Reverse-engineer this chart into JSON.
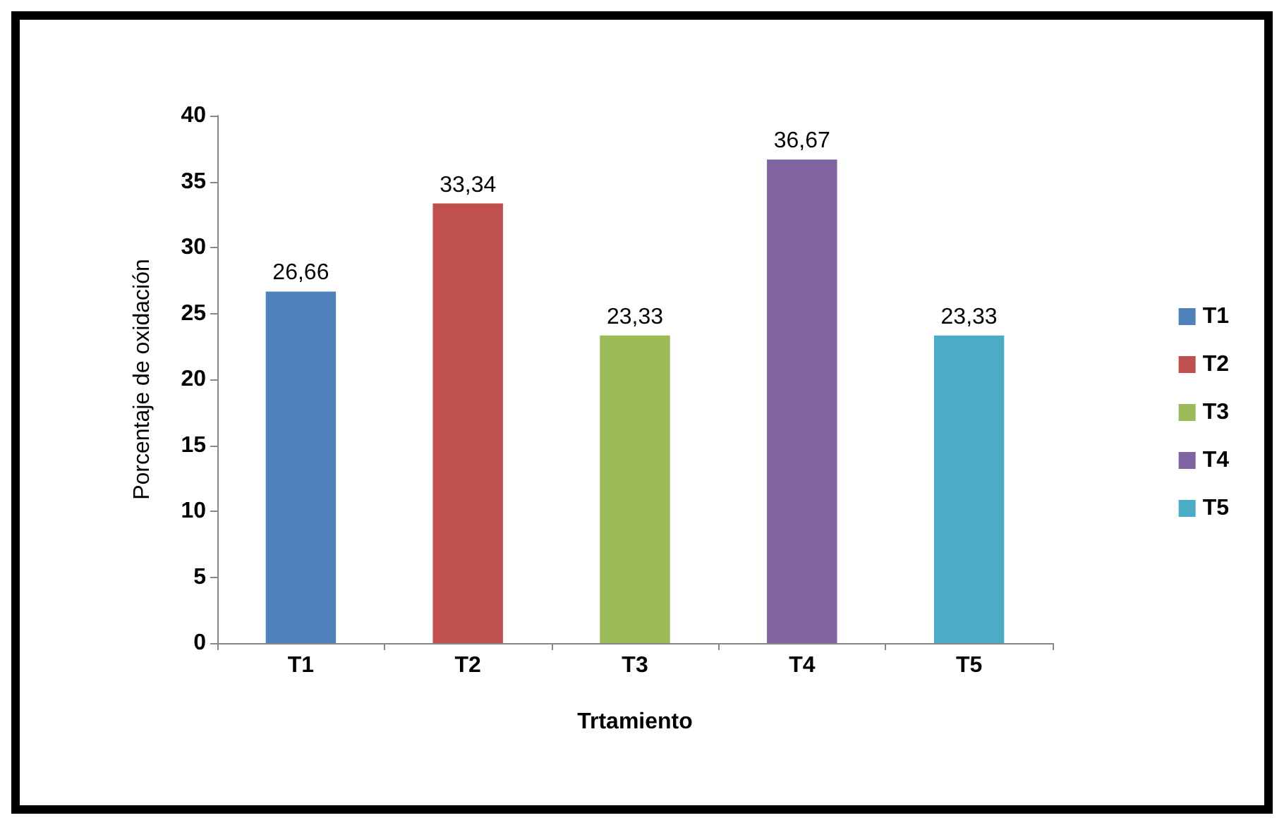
{
  "chart_data": {
    "type": "bar",
    "xlabel": "Trtamiento",
    "ylabel": "Porcentaje de oxidación",
    "categories": [
      "T1",
      "T2",
      "T3",
      "T4",
      "T5"
    ],
    "series": [
      {
        "name": "T1",
        "color": "#4f81bd",
        "values": [
          26.66,
          null,
          null,
          null,
          null
        ],
        "value_labels": [
          "26,66",
          null,
          null,
          null,
          null
        ]
      },
      {
        "name": "T2",
        "color": "#c0504d",
        "values": [
          null,
          33.34,
          null,
          null,
          null
        ],
        "value_labels": [
          null,
          "33,34",
          null,
          null,
          null
        ]
      },
      {
        "name": "T3",
        "color": "#9bbb59",
        "values": [
          null,
          null,
          23.33,
          null,
          null
        ],
        "value_labels": [
          null,
          null,
          "23,33",
          null,
          null
        ]
      },
      {
        "name": "T4",
        "color": "#8064a2",
        "values": [
          null,
          null,
          null,
          36.67,
          null
        ],
        "value_labels": [
          null,
          null,
          null,
          "36,67",
          null
        ]
      },
      {
        "name": "T5",
        "color": "#4bacc6",
        "values": [
          null,
          null,
          null,
          null,
          23.33
        ],
        "value_labels": [
          null,
          null,
          null,
          null,
          "23,33"
        ]
      }
    ],
    "stacked": true,
    "ylim": [
      0,
      40
    ],
    "yticks": [
      0,
      5,
      10,
      15,
      20,
      25,
      30,
      35,
      40
    ],
    "grid": false,
    "legend": "right"
  }
}
